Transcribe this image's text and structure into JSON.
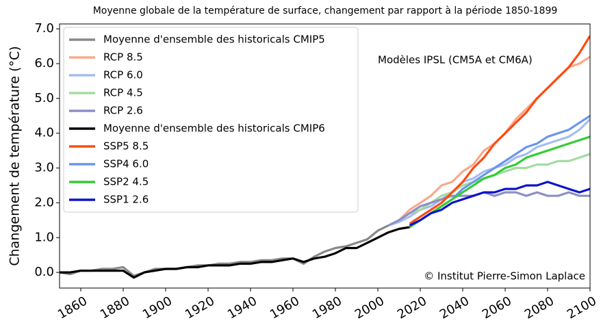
{
  "chart_data": {
    "type": "line",
    "title": "Moyenne globale de la température de surface, changement par rapport à la période 1850-1899",
    "ylabel": "Changement de température (°C)",
    "annotations": [
      "Modèles IPSL (CM5A et CM6A)",
      "© Institut Pierre-Simon Laplace"
    ],
    "legend": "upper left",
    "xlim": [
      1850,
      2100
    ],
    "xticks": [
      1860,
      1880,
      1900,
      1920,
      1940,
      1960,
      1980,
      2000,
      2020,
      2040,
      2060,
      2080,
      2100
    ],
    "ylim": [
      -0.45,
      7.14
    ],
    "yticks": [
      {
        "value": 0,
        "label": "0.0"
      },
      {
        "value": 1,
        "label": "1.0"
      },
      {
        "value": 2,
        "label": "2.0"
      },
      {
        "value": 3,
        "label": "3.0"
      },
      {
        "value": 4,
        "label": "4.0"
      },
      {
        "value": 5,
        "label": "5.0"
      },
      {
        "value": 6,
        "label": "6.0"
      },
      {
        "value": 7,
        "label": "7.0"
      }
    ],
    "x": [
      1850,
      1855,
      1860,
      1865,
      1870,
      1875,
      1880,
      1885,
      1890,
      1895,
      1900,
      1905,
      1910,
      1915,
      1920,
      1925,
      1930,
      1935,
      1940,
      1945,
      1950,
      1955,
      1960,
      1965,
      1970,
      1975,
      1980,
      1985,
      1990,
      1995,
      2000,
      2005,
      2010,
      2015,
      2020,
      2025,
      2030,
      2035,
      2040,
      2045,
      2050,
      2055,
      2060,
      2065,
      2070,
      2075,
      2080,
      2085,
      2090,
      2095,
      2100
    ],
    "series": [
      {
        "name": "Moyenne d'ensemble des historicals CMIP5",
        "color": "#888888",
        "values": [
          0.0,
          -0.05,
          0.05,
          0.05,
          0.1,
          0.1,
          0.15,
          -0.1,
          0.0,
          0.1,
          0.1,
          0.1,
          0.15,
          0.2,
          0.2,
          0.25,
          0.25,
          0.3,
          0.3,
          0.35,
          0.35,
          0.4,
          0.4,
          0.25,
          0.45,
          0.6,
          0.7,
          0.75,
          0.85,
          0.95,
          1.2,
          1.35,
          null,
          null,
          null,
          null,
          null,
          null,
          null,
          null,
          null,
          null,
          null,
          null,
          null,
          null,
          null,
          null,
          null,
          null,
          null
        ]
      },
      {
        "name": "RCP 8.5",
        "color": "#f9a88a",
        "values": [
          null,
          null,
          null,
          null,
          null,
          null,
          null,
          null,
          null,
          null,
          null,
          null,
          null,
          null,
          null,
          null,
          null,
          null,
          null,
          null,
          null,
          null,
          null,
          null,
          null,
          null,
          null,
          null,
          null,
          null,
          null,
          1.35,
          1.5,
          1.8,
          2.0,
          2.2,
          2.5,
          2.6,
          2.9,
          3.1,
          3.5,
          3.7,
          4.0,
          4.4,
          4.7,
          5.0,
          5.3,
          5.6,
          5.9,
          6.0,
          6.2
        ]
      },
      {
        "name": "RCP 6.0",
        "color": "#a3bdf2",
        "values": [
          null,
          null,
          null,
          null,
          null,
          null,
          null,
          null,
          null,
          null,
          null,
          null,
          null,
          null,
          null,
          null,
          null,
          null,
          null,
          null,
          null,
          null,
          null,
          null,
          null,
          null,
          null,
          null,
          null,
          null,
          null,
          1.35,
          1.45,
          1.6,
          1.8,
          1.9,
          2.1,
          2.3,
          2.6,
          2.7,
          2.9,
          3.0,
          3.1,
          3.3,
          3.4,
          3.6,
          3.7,
          3.8,
          3.9,
          4.1,
          4.4
        ]
      },
      {
        "name": "RCP 4.5",
        "color": "#a3dca0",
        "values": [
          null,
          null,
          null,
          null,
          null,
          null,
          null,
          null,
          null,
          null,
          null,
          null,
          null,
          null,
          null,
          null,
          null,
          null,
          null,
          null,
          null,
          null,
          null,
          null,
          null,
          null,
          null,
          null,
          null,
          null,
          null,
          1.35,
          1.5,
          1.7,
          1.8,
          2.0,
          2.2,
          2.3,
          2.5,
          2.6,
          2.7,
          2.8,
          2.9,
          3.0,
          3.0,
          3.1,
          3.1,
          3.2,
          3.2,
          3.3,
          3.4
        ]
      },
      {
        "name": "RCP 2.6",
        "color": "#8e8ec6",
        "values": [
          null,
          null,
          null,
          null,
          null,
          null,
          null,
          null,
          null,
          null,
          null,
          null,
          null,
          null,
          null,
          null,
          null,
          null,
          null,
          null,
          null,
          null,
          null,
          null,
          null,
          null,
          null,
          null,
          null,
          null,
          null,
          1.35,
          1.5,
          1.7,
          1.9,
          2.0,
          2.1,
          2.2,
          2.2,
          2.2,
          2.3,
          2.2,
          2.3,
          2.3,
          2.2,
          2.3,
          2.2,
          2.2,
          2.3,
          2.2,
          2.2
        ]
      },
      {
        "name": "Moyenne d'ensemble des historicals CMIP6",
        "color": "#000000",
        "values": [
          0.0,
          0.0,
          0.05,
          0.05,
          0.05,
          0.05,
          0.05,
          -0.15,
          0.0,
          0.05,
          0.1,
          0.1,
          0.15,
          0.15,
          0.2,
          0.2,
          0.2,
          0.25,
          0.25,
          0.3,
          0.3,
          0.35,
          0.4,
          0.3,
          0.4,
          0.45,
          0.55,
          0.7,
          0.7,
          0.85,
          1.0,
          1.15,
          1.25,
          1.3,
          null,
          null,
          null,
          null,
          null,
          null,
          null,
          null,
          null,
          null,
          null,
          null,
          null,
          null,
          null,
          null,
          null
        ]
      },
      {
        "name": "SSP5 8.5",
        "color": "#ff4a10",
        "values": [
          null,
          null,
          null,
          null,
          null,
          null,
          null,
          null,
          null,
          null,
          null,
          null,
          null,
          null,
          null,
          null,
          null,
          null,
          null,
          null,
          null,
          null,
          null,
          null,
          null,
          null,
          null,
          null,
          null,
          null,
          null,
          null,
          null,
          1.4,
          1.6,
          1.8,
          2.0,
          2.3,
          2.6,
          3.0,
          3.3,
          3.7,
          4.0,
          4.3,
          4.6,
          5.0,
          5.3,
          5.6,
          5.9,
          6.3,
          6.8
        ]
      },
      {
        "name": "SSP4 6.0",
        "color": "#6a96ea",
        "values": [
          null,
          null,
          null,
          null,
          null,
          null,
          null,
          null,
          null,
          null,
          null,
          null,
          null,
          null,
          null,
          null,
          null,
          null,
          null,
          null,
          null,
          null,
          null,
          null,
          null,
          null,
          null,
          null,
          null,
          null,
          null,
          null,
          null,
          1.35,
          1.5,
          1.7,
          1.9,
          2.1,
          2.4,
          2.6,
          2.8,
          3.0,
          3.2,
          3.4,
          3.6,
          3.7,
          3.9,
          4.0,
          4.1,
          4.3,
          4.5
        ]
      },
      {
        "name": "SSP2 4.5",
        "color": "#33cc33",
        "values": [
          null,
          null,
          null,
          null,
          null,
          null,
          null,
          null,
          null,
          null,
          null,
          null,
          null,
          null,
          null,
          null,
          null,
          null,
          null,
          null,
          null,
          null,
          null,
          null,
          null,
          null,
          null,
          null,
          null,
          null,
          null,
          null,
          null,
          1.3,
          1.5,
          1.7,
          1.9,
          2.1,
          2.3,
          2.5,
          2.7,
          2.8,
          3.0,
          3.1,
          3.3,
          3.4,
          3.5,
          3.6,
          3.7,
          3.8,
          3.9
        ]
      },
      {
        "name": "SSP1 2.6",
        "color": "#0a14c8",
        "values": [
          null,
          null,
          null,
          null,
          null,
          null,
          null,
          null,
          null,
          null,
          null,
          null,
          null,
          null,
          null,
          null,
          null,
          null,
          null,
          null,
          null,
          null,
          null,
          null,
          null,
          null,
          null,
          null,
          null,
          null,
          null,
          null,
          null,
          1.35,
          1.5,
          1.7,
          1.8,
          2.0,
          2.1,
          2.2,
          2.3,
          2.3,
          2.4,
          2.4,
          2.5,
          2.5,
          2.6,
          2.5,
          2.4,
          2.3,
          2.4
        ]
      }
    ]
  }
}
